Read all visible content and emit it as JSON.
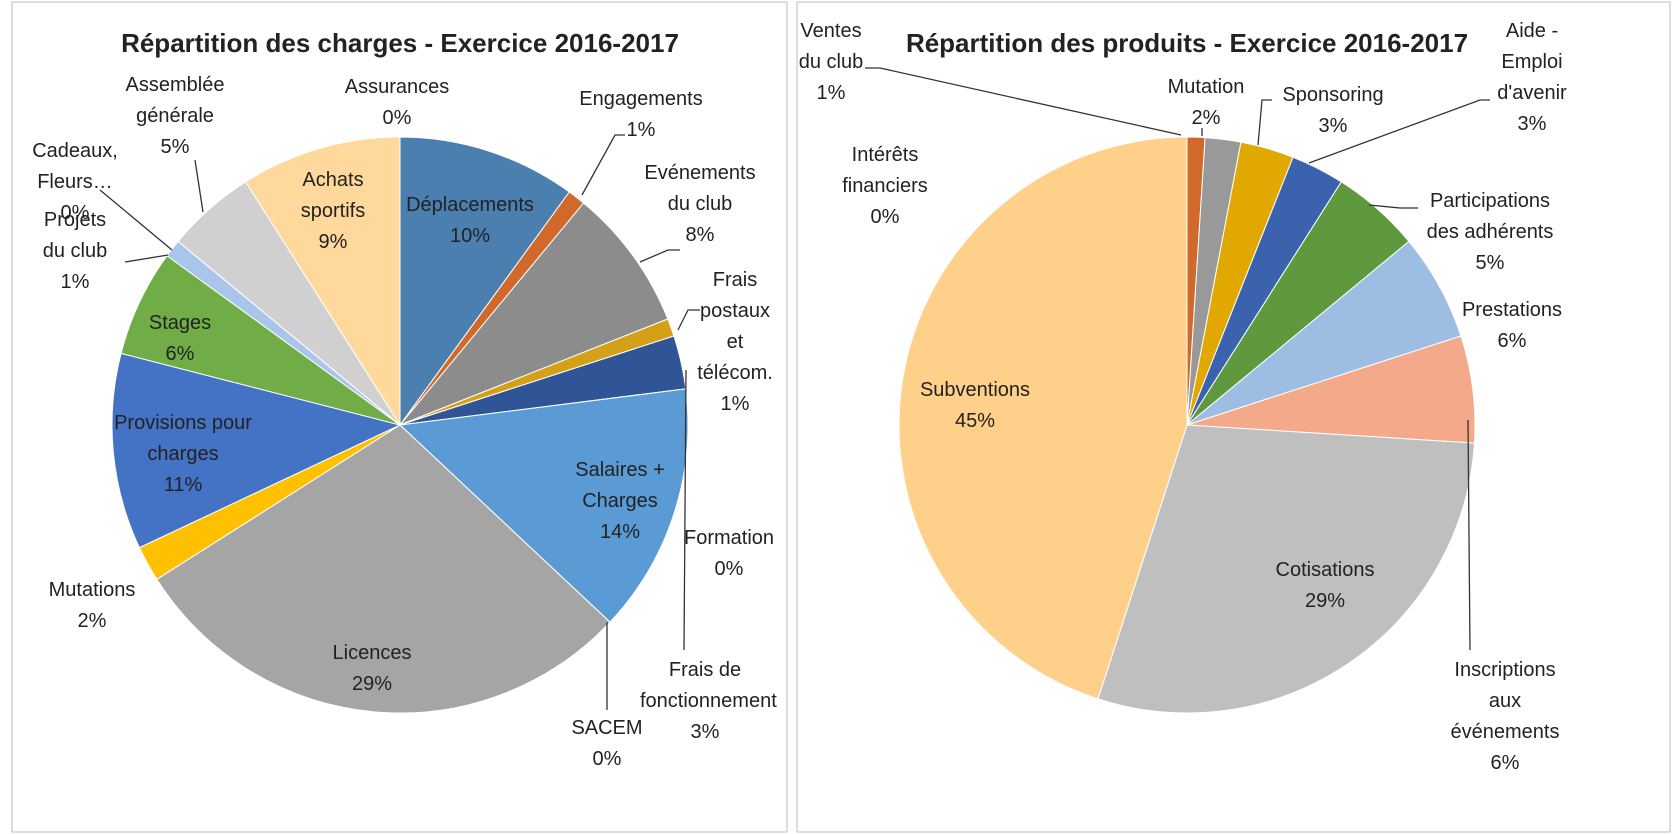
{
  "chart_data": [
    {
      "type": "pie",
      "title": "Répartition des charges - Exercice 2016-2017",
      "categories": [
        "Assurances",
        "Déplacements",
        "Engagements",
        "Evénements du club",
        "Frais postaux et télécom.",
        "Frais de fonctionnement",
        "Formation",
        "Salaires + Charges",
        "SACEM",
        "Licences",
        "Mutations",
        "Provisions pour charges",
        "Stages",
        "Projets du club",
        "Cadeaux, Fleurs…",
        "Assemblée générale",
        "Achats sportifs"
      ],
      "values": [
        0,
        10,
        1,
        8,
        1,
        3,
        0,
        14,
        0,
        29,
        2,
        11,
        6,
        1,
        0,
        5,
        9
      ],
      "value_labels": [
        "0%",
        "10%",
        "1%",
        "8%",
        "1%",
        "3%",
        "0%",
        "14%",
        "0%",
        "29%",
        "2%",
        "11%",
        "6%",
        "1%",
        "0%",
        "5%",
        "9%"
      ],
      "colors": [
        "#9dc3e6",
        "#4a7fb0",
        "#d0692a",
        "#8c8c8c",
        "#d4a017",
        "#2f5597",
        "#70ad47",
        "#5b9bd5",
        "#ed7d31",
        "#a5a5a5",
        "#ffc000",
        "#4472c4",
        "#70ad47",
        "#a9c6ea",
        "#f4b183",
        "#d0d0d0",
        "#ffd89b"
      ]
    },
    {
      "type": "pie",
      "title": "Répartition des produits - Exercice 2016-2017",
      "categories": [
        "Intérêts financiers",
        "Ventes du club",
        "Mutation",
        "Sponsoring",
        "Aide - Emploi d'avenir",
        "Participations des adhérents",
        "Prestations",
        "Inscriptions aux événements",
        "Cotisations",
        "Subventions"
      ],
      "values": [
        0,
        1,
        2,
        3,
        3,
        5,
        6,
        6,
        29,
        45
      ],
      "value_labels": [
        "0%",
        "1%",
        "2%",
        "3%",
        "3%",
        "5%",
        "6%",
        "6%",
        "29%",
        "45%"
      ],
      "colors": [
        "#4472c4",
        "#d0692a",
        "#999999",
        "#e0a800",
        "#3a62ad",
        "#5e9a3d",
        "#9dbde3",
        "#f3a98a",
        "#bfbfbf",
        "#ffd08a"
      ]
    }
  ]
}
